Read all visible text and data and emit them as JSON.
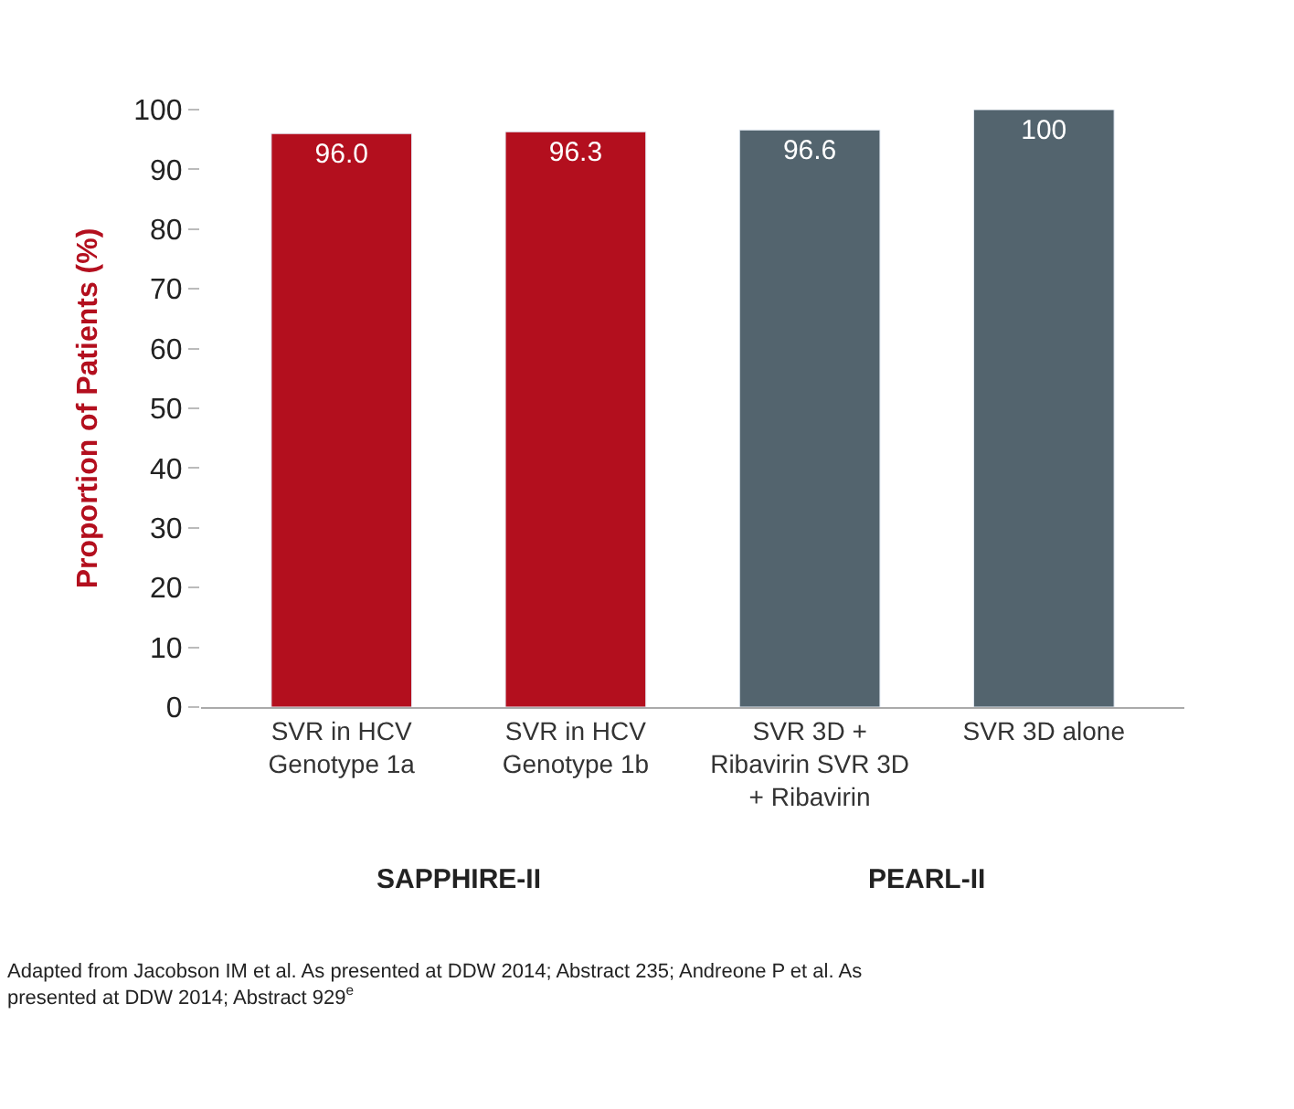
{
  "chart_data": {
    "type": "bar",
    "ylabel": "Proportion of Patients (%)",
    "categories": [
      "SVR in HCV Genotype 1a",
      "SVR in HCV Genotype 1b",
      "SVR 3D + Ribavirin SVR 3D + Ribavirin",
      "SVR 3D alone"
    ],
    "values": [
      96.0,
      96.3,
      96.6,
      100
    ],
    "colors": [
      "#b30f1e",
      "#b30f1e",
      "#53646e",
      "#53646e"
    ],
    "value_labels": [
      "96.0",
      "96.3",
      "96.6",
      "100"
    ],
    "ylim": [
      0,
      100
    ],
    "yticks": [
      0,
      10,
      20,
      30,
      40,
      50,
      60,
      70,
      80,
      90,
      100
    ],
    "annotations": [
      "SAPPHIRE-II",
      "PEARL-II",
      "Adapted from Jacobson IM et al. As presented at DDW 2014; Abstract 235; Andreone P et al. As presented at DDW 2014; Abstract 929$^{e}$"
    ],
    "legend": false
  }
}
